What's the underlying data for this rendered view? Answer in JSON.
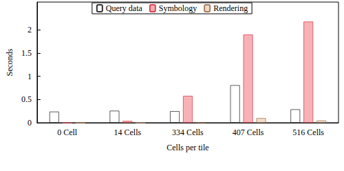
{
  "chart_data": {
    "type": "bar",
    "x_label": "Cells per tile",
    "y_label": "Seconds",
    "categories": [
      "0 Cell",
      "14 Cells",
      "334 Cells",
      "407 Cells",
      "516 Cells"
    ],
    "series": [
      {
        "name": "Query data",
        "color": "#ffffff",
        "values": [
          0.24,
          0.26,
          0.25,
          0.81,
          0.29
        ]
      },
      {
        "name": "Symbology",
        "color": "#f7b2b7",
        "values": [
          0,
          0.04,
          0.58,
          1.9,
          2.18
        ]
      },
      {
        "name": "Rendering",
        "color": "#f0dccb",
        "values": [
          0,
          0,
          0.01,
          0.1,
          0.05
        ]
      }
    ],
    "ylim": [
      0,
      2.6
    ],
    "yticks": [
      0,
      0.5,
      1,
      1.5,
      2
    ],
    "grid": false,
    "legend": "top"
  }
}
